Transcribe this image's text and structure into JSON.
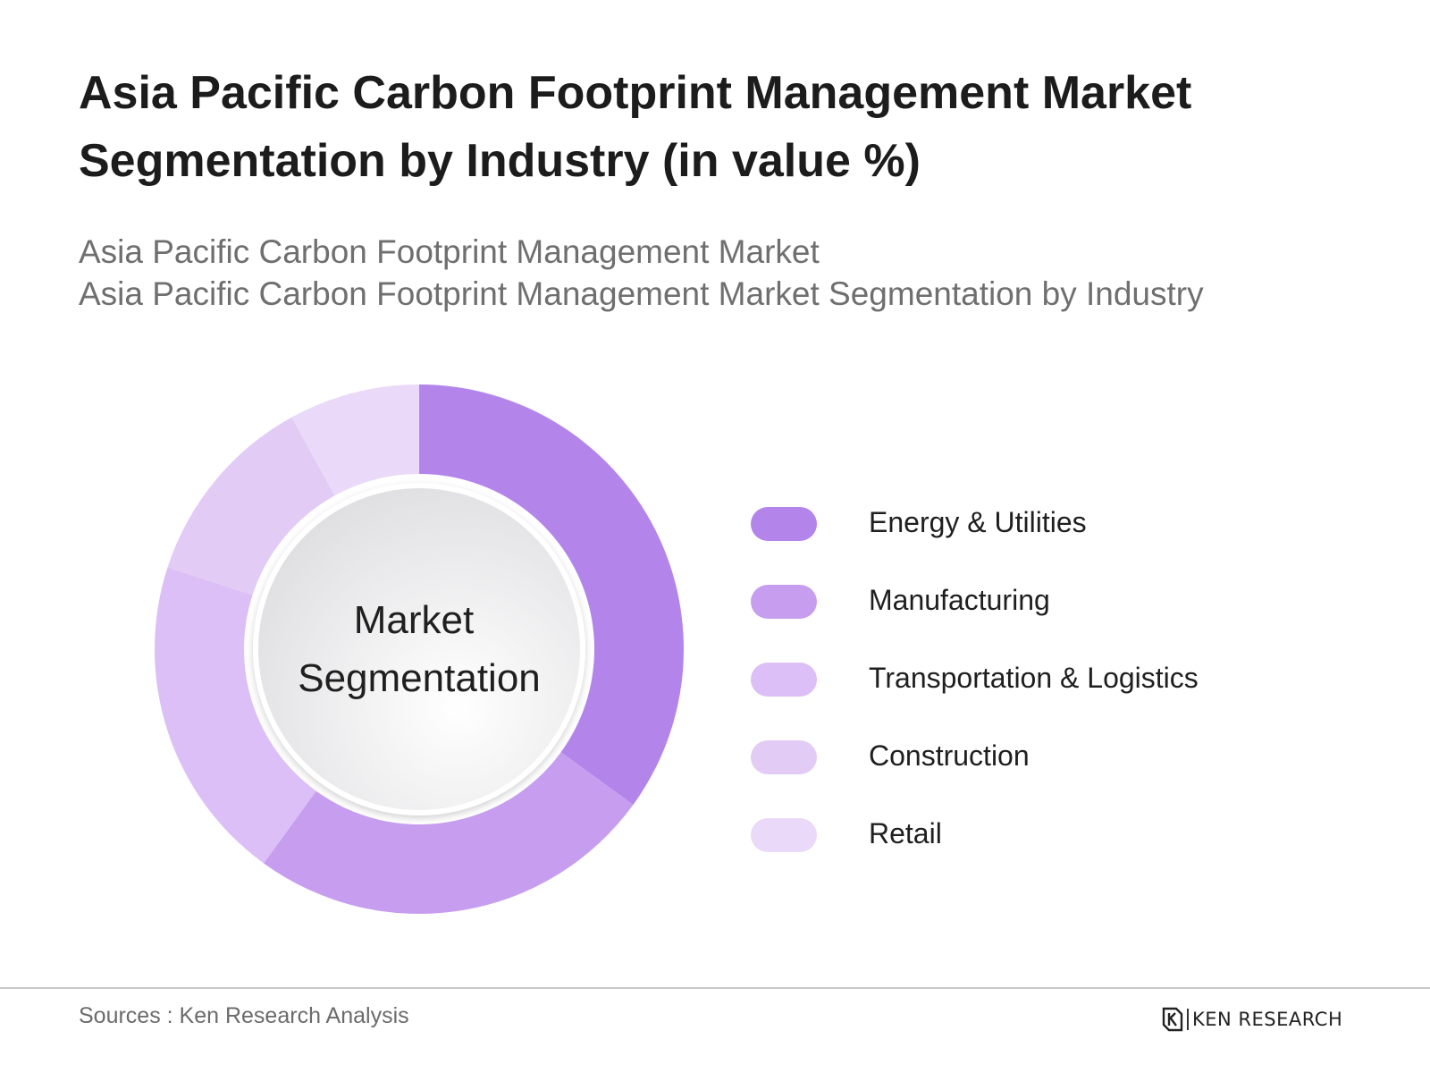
{
  "title": "Asia Pacific Carbon Footprint Management Market Segmentation by Industry (in value %)",
  "subtitle_lines": [
    "Asia Pacific Carbon Footprint Management Market",
    "Asia Pacific Carbon Footprint Management Market Segmentation by Industry"
  ],
  "center_label": {
    "line1": "Market",
    "line2": "Segmentation"
  },
  "source": "Sources : Ken Research Analysis",
  "logo_text": "KEN RESEARCH",
  "chart_data": {
    "type": "pie",
    "variant": "donut",
    "categories": [
      "Energy & Utilities",
      "Manufacturing",
      "Transportation & Logistics",
      "Construction",
      "Retail"
    ],
    "values": [
      35,
      25,
      20,
      12,
      8
    ],
    "unit": "%",
    "colors": [
      "#b385eb",
      "#c79eef",
      "#dbbff6",
      "#e2ccf6",
      "#ead9f8"
    ],
    "start_angle_deg": 0,
    "direction": "clockwise",
    "legend_position": "right"
  }
}
